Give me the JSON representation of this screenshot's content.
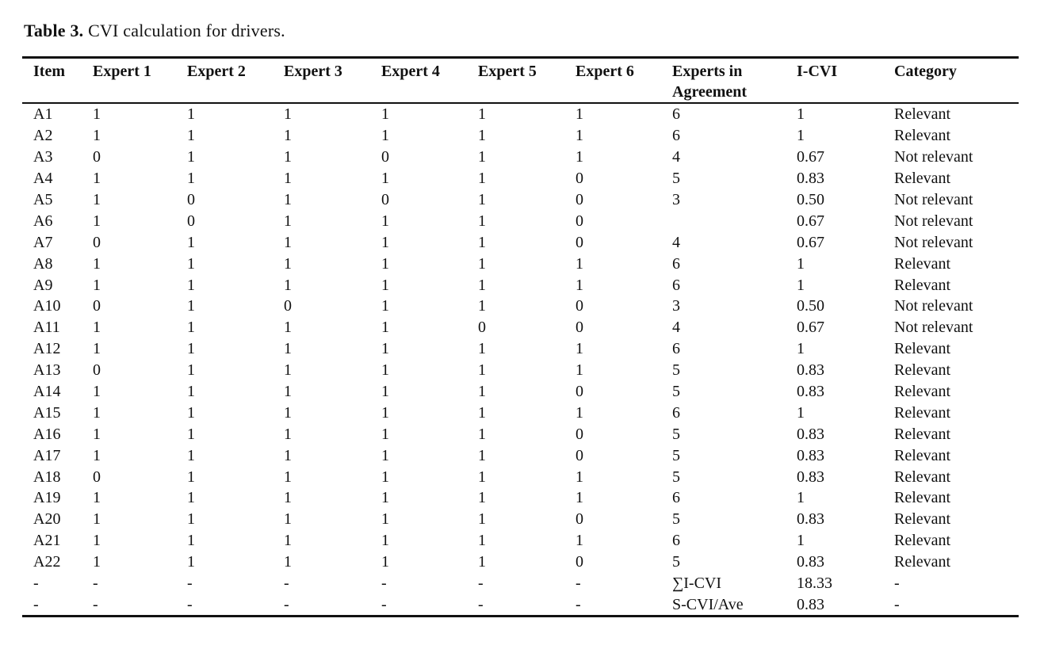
{
  "title": {
    "label": "Table 3.",
    "text": " CVI calculation for drivers."
  },
  "table": {
    "headers": [
      "Item",
      "Expert 1",
      "Expert 2",
      "Expert 3",
      "Expert 4",
      "Expert 5",
      "Expert 6",
      "Experts in Agreement",
      "I-CVI",
      "Category"
    ],
    "rows": [
      [
        "A1",
        "1",
        "1",
        "1",
        "1",
        "1",
        "1",
        "6",
        "1",
        "Relevant"
      ],
      [
        "A2",
        "1",
        "1",
        "1",
        "1",
        "1",
        "1",
        "6",
        "1",
        "Relevant"
      ],
      [
        "A3",
        "0",
        "1",
        "1",
        "0",
        "1",
        "1",
        "4",
        "0.67",
        "Not relevant"
      ],
      [
        "A4",
        "1",
        "1",
        "1",
        "1",
        "1",
        "0",
        "5",
        "0.83",
        "Relevant"
      ],
      [
        "A5",
        "1",
        "0",
        "1",
        "0",
        "1",
        "0",
        "3",
        "0.50",
        "Not relevant"
      ],
      [
        "A6",
        "1",
        "0",
        "1",
        "1",
        "1",
        "0",
        "",
        "0.67",
        "Not relevant"
      ],
      [
        "A7",
        "0",
        "1",
        "1",
        "1",
        "1",
        "0",
        "4",
        "0.67",
        "Not relevant"
      ],
      [
        "A8",
        "1",
        "1",
        "1",
        "1",
        "1",
        "1",
        "6",
        "1",
        "Relevant"
      ],
      [
        "A9",
        "1",
        "1",
        "1",
        "1",
        "1",
        "1",
        "6",
        "1",
        "Relevant"
      ],
      [
        "A10",
        "0",
        "1",
        "0",
        "1",
        "1",
        "0",
        "3",
        "0.50",
        "Not relevant"
      ],
      [
        "A11",
        "1",
        "1",
        "1",
        "1",
        "0",
        "0",
        "4",
        "0.67",
        "Not relevant"
      ],
      [
        "A12",
        "1",
        "1",
        "1",
        "1",
        "1",
        "1",
        "6",
        "1",
        "Relevant"
      ],
      [
        "A13",
        "0",
        "1",
        "1",
        "1",
        "1",
        "1",
        "5",
        "0.83",
        "Relevant"
      ],
      [
        "A14",
        "1",
        "1",
        "1",
        "1",
        "1",
        "0",
        "5",
        "0.83",
        "Relevant"
      ],
      [
        "A15",
        "1",
        "1",
        "1",
        "1",
        "1",
        "1",
        "6",
        "1",
        "Relevant"
      ],
      [
        "A16",
        "1",
        "1",
        "1",
        "1",
        "1",
        "0",
        "5",
        "0.83",
        "Relevant"
      ],
      [
        "A17",
        "1",
        "1",
        "1",
        "1",
        "1",
        "0",
        "5",
        "0.83",
        "Relevant"
      ],
      [
        "A18",
        "0",
        "1",
        "1",
        "1",
        "1",
        "1",
        "5",
        "0.83",
        "Relevant"
      ],
      [
        "A19",
        "1",
        "1",
        "1",
        "1",
        "1",
        "1",
        "6",
        "1",
        "Relevant"
      ],
      [
        "A20",
        "1",
        "1",
        "1",
        "1",
        "1",
        "0",
        "5",
        "0.83",
        "Relevant"
      ],
      [
        "A21",
        "1",
        "1",
        "1",
        "1",
        "1",
        "1",
        "6",
        "1",
        "Relevant"
      ],
      [
        "A22",
        "1",
        "1",
        "1",
        "1",
        "1",
        "0",
        "5",
        "0.83",
        "Relevant"
      ],
      [
        "-",
        "-",
        "-",
        "-",
        "-",
        "-",
        "-",
        "∑I-CVI",
        "18.33",
        "-"
      ],
      [
        "-",
        "-",
        "-",
        "-",
        "-",
        "-",
        "-",
        "S-CVI/Ave",
        "0.83",
        "-"
      ]
    ]
  }
}
